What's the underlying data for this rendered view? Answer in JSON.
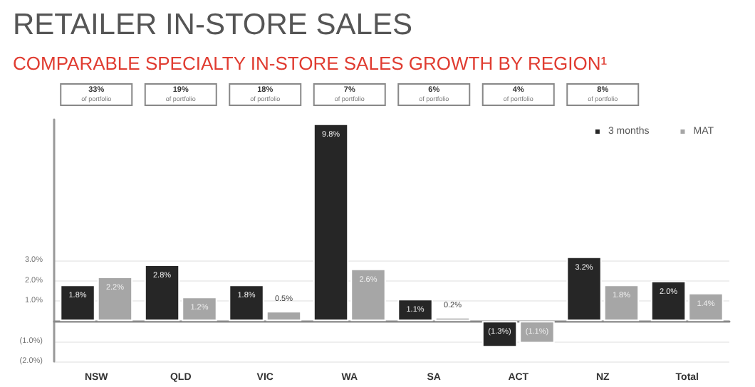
{
  "chart_data": {
    "type": "bar",
    "title": "RETAILER IN-STORE SALES",
    "subtitle": "COMPARABLE SPECIALTY IN-STORE SALES GROWTH BY REGION¹",
    "categories": [
      "NSW",
      "QLD",
      "VIC",
      "WA",
      "SA",
      "ACT",
      "NZ",
      "Total"
    ],
    "series": [
      {
        "name": "3 months",
        "color": "#262626",
        "values": [
          1.8,
          2.8,
          1.8,
          9.8,
          1.1,
          -1.3,
          3.2,
          2.0
        ],
        "value_labels": [
          "1.8%",
          "2.8%",
          "1.8%",
          "9.8%",
          "1.1%",
          "(1.3%)",
          "3.2%",
          "2.0%"
        ]
      },
      {
        "name": "MAT",
        "color": "#a6a6a6",
        "values": [
          2.2,
          1.2,
          0.5,
          2.6,
          0.2,
          -1.1,
          1.8,
          1.4
        ],
        "value_labels": [
          "2.2%",
          "1.2%",
          "0.5%",
          "2.6%",
          "0.2%",
          "(1.1%)",
          "1.8%",
          "1.4%"
        ]
      }
    ],
    "annotations": [
      "33% of portfolio",
      "19% of portfolio",
      "18% of portfolio",
      "7% of portfolio",
      "6% of portfolio",
      "4% of portfolio",
      "8% of portfolio"
    ],
    "ylim": [
      -2,
      10
    ],
    "yticks": [
      {
        "value": 3,
        "label": "3.0%"
      },
      {
        "value": 2,
        "label": "2.0%"
      },
      {
        "value": 1,
        "label": "1.0%"
      },
      {
        "value": -1,
        "label": "(1.0%)"
      },
      {
        "value": -2,
        "label": "(2.0%)"
      }
    ],
    "grid": "y",
    "legend": "top right"
  }
}
